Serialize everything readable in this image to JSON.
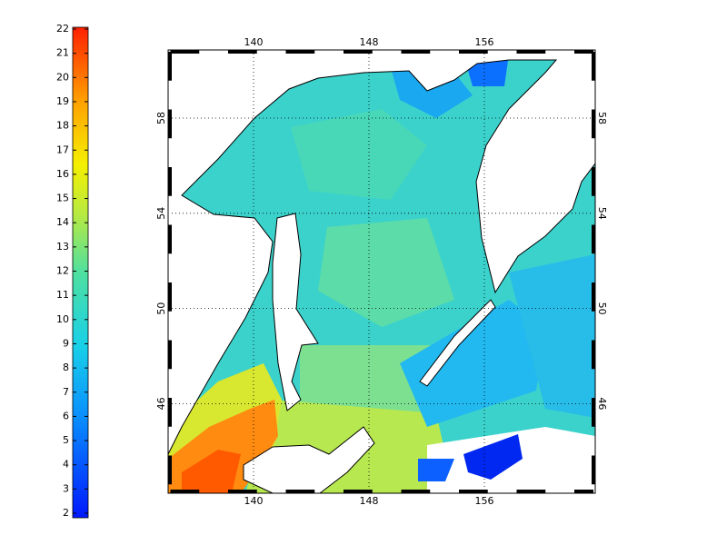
{
  "colorbar": {
    "ticks": [
      2,
      3,
      4,
      5,
      6,
      7,
      8,
      9,
      10,
      11,
      12,
      13,
      14,
      15,
      16,
      17,
      18,
      19,
      20,
      21,
      22
    ]
  },
  "map": {
    "lon_ticks": [
      140,
      148,
      156
    ],
    "lat_ticks": [
      58,
      54,
      50,
      46
    ]
  }
}
